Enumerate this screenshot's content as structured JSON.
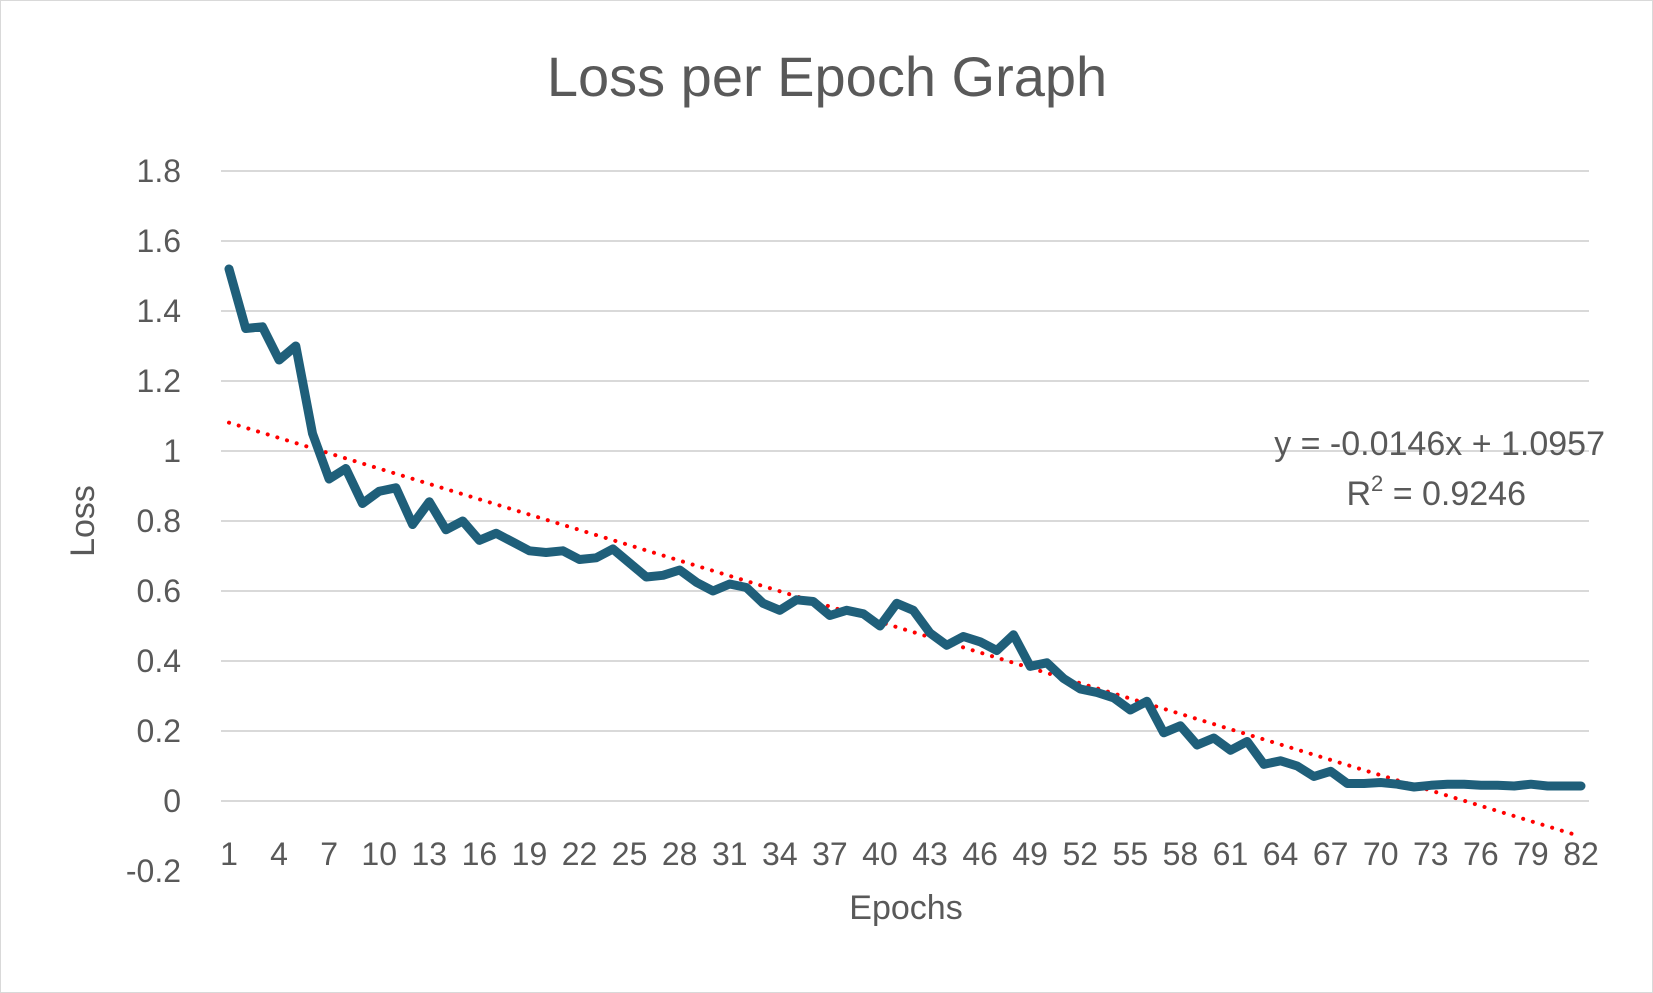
{
  "chart_data": {
    "type": "line",
    "title": "Loss per Epoch Graph",
    "xlabel": "Epochs",
    "ylabel": "Loss",
    "ylim": [
      -0.2,
      1.8
    ],
    "yticks": [
      "-0.2",
      "0",
      "0.2",
      "0.4",
      "0.6",
      "0.8",
      "1",
      "1.2",
      "1.4",
      "1.6",
      "1.8"
    ],
    "x": [
      1,
      2,
      3,
      4,
      5,
      6,
      7,
      8,
      9,
      10,
      11,
      12,
      13,
      14,
      15,
      16,
      17,
      18,
      19,
      20,
      21,
      22,
      23,
      24,
      25,
      26,
      27,
      28,
      29,
      30,
      31,
      32,
      33,
      34,
      35,
      36,
      37,
      38,
      39,
      40,
      41,
      42,
      43,
      44,
      45,
      46,
      47,
      48,
      49,
      50,
      51,
      52,
      53,
      54,
      55,
      56,
      57,
      58,
      59,
      60,
      61,
      62,
      63,
      64,
      65,
      66,
      67,
      68,
      69,
      70,
      71,
      72,
      73,
      74,
      75,
      76,
      77,
      78,
      79,
      80,
      81,
      82
    ],
    "xtick_labels": [
      "1",
      "4",
      "7",
      "10",
      "13",
      "16",
      "19",
      "22",
      "25",
      "28",
      "31",
      "34",
      "37",
      "40",
      "43",
      "46",
      "49",
      "52",
      "55",
      "58",
      "61",
      "64",
      "67",
      "70",
      "73",
      "76",
      "79",
      "82"
    ],
    "series": [
      {
        "values": [
          1.52,
          1.35,
          1.355,
          1.26,
          1.3,
          1.05,
          0.92,
          0.95,
          0.85,
          0.885,
          0.895,
          0.79,
          0.855,
          0.775,
          0.8,
          0.745,
          0.765,
          0.74,
          0.715,
          0.71,
          0.715,
          0.69,
          0.695,
          0.72,
          0.68,
          0.64,
          0.645,
          0.66,
          0.625,
          0.6,
          0.62,
          0.61,
          0.565,
          0.545,
          0.575,
          0.57,
          0.53,
          0.545,
          0.535,
          0.5,
          0.565,
          0.545,
          0.48,
          0.445,
          0.47,
          0.455,
          0.43,
          0.475,
          0.385,
          0.395,
          0.35,
          0.32,
          0.31,
          0.295,
          0.26,
          0.285,
          0.195,
          0.215,
          0.16,
          0.18,
          0.145,
          0.17,
          0.105,
          0.115,
          0.1,
          0.07,
          0.085,
          0.05,
          0.05,
          0.053,
          0.048,
          0.04,
          0.045,
          0.048,
          0.048,
          0.045,
          0.045,
          0.043,
          0.048,
          0.043,
          0.043,
          0.043
        ],
        "color": "#1f5f7a"
      }
    ],
    "trendline": {
      "type": "linear",
      "slope": -0.0146,
      "intercept": 1.0957,
      "color": "#ff0000",
      "equation": "y = -0.0146x + 1.0957",
      "r2_prefix": "R",
      "r2_sup": "2",
      "r2_suffix": " = 0.9246"
    },
    "grid": true,
    "legend": "none"
  }
}
